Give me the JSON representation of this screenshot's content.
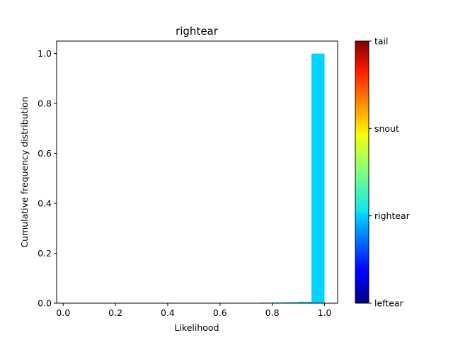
{
  "chart_data": {
    "type": "bar",
    "title": "rightear",
    "xlabel": "Likelihood",
    "ylabel": "Cumulative frequency distribution",
    "xlim": [
      -0.025,
      1.05
    ],
    "ylim": [
      0,
      1.05
    ],
    "xticks": [
      "0.0",
      "0.2",
      "0.4",
      "0.6",
      "0.8",
      "1.0"
    ],
    "yticks": [
      "0.0",
      "0.2",
      "0.4",
      "0.6",
      "0.8",
      "1.0"
    ],
    "bin_edges": [
      0.0,
      0.05,
      0.1,
      0.15,
      0.2,
      0.25,
      0.3,
      0.35,
      0.4,
      0.45,
      0.5,
      0.55,
      0.6,
      0.65,
      0.7,
      0.75,
      0.8,
      0.85,
      0.9,
      0.95,
      1.0
    ],
    "values": [
      0,
      0,
      0,
      0,
      0,
      0,
      0,
      0,
      0,
      0,
      0,
      0,
      0,
      0,
      0.001,
      0.002,
      0.003,
      0.004,
      0.006,
      1.0
    ],
    "bar_color": "#00d4ff",
    "grid": false,
    "colorbar": {
      "colormap": "jet",
      "labels": [
        "leftear",
        "rightear",
        "snout",
        "tail"
      ]
    }
  }
}
